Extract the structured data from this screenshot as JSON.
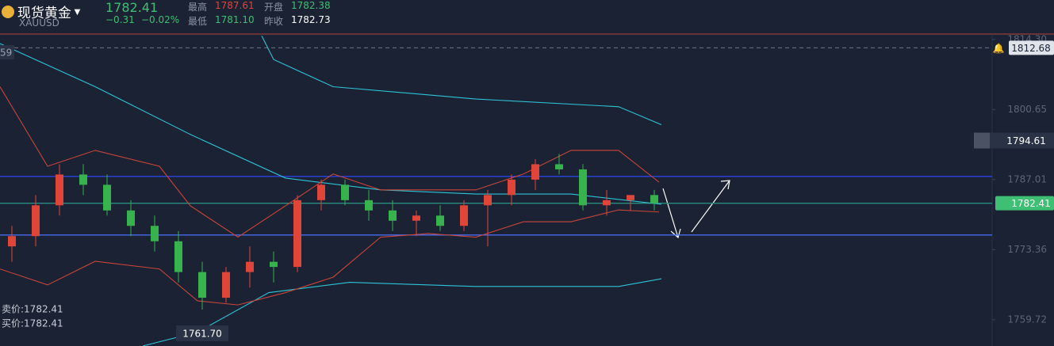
{
  "header": {
    "title": "现货黄金",
    "symbol": "XAUUSD",
    "price": "1782.41",
    "change": "−0.31",
    "change_pct": "−0.02%",
    "stats": [
      {
        "label": "最高",
        "value": "1787.61",
        "color": "#e0453a"
      },
      {
        "label": "开盘",
        "value": "1782.38",
        "color": "#3fbf73"
      },
      {
        "label": "最低",
        "value": "1781.10",
        "color": "#3fbf73"
      },
      {
        "label": "昨收",
        "value": "1782.73",
        "color": "#ffffff"
      }
    ]
  },
  "chart_data": {
    "type": "candlestick",
    "xlim": [
      0.5,
      28.5
    ],
    "ylim": [
      1754.6,
      1815.2
    ],
    "yticks": [
      {
        "value": 1814.3,
        "label": "1814.30"
      },
      1800.65,
      1787.01,
      1773.36,
      1759.72
    ],
    "up_color": "#e0453a",
    "down_color": "#37b24d",
    "open": [
      1774,
      1776,
      1782,
      1788,
      1786,
      1781,
      1778,
      1775,
      1769,
      1764,
      1769,
      1771,
      1770,
      1783,
      1786,
      1783,
      1781,
      1779,
      1780,
      1778,
      1782,
      1784,
      1787,
      1790,
      1789,
      1782,
      1783,
      1784
    ],
    "high": [
      1778,
      1784,
      1790,
      1790,
      1788,
      1783,
      1780,
      1777,
      1771,
      1770,
      1774,
      1773,
      1784,
      1787,
      1787,
      1785,
      1783,
      1781,
      1782,
      1783,
      1785,
      1788,
      1791,
      1792,
      1790,
      1785,
      1784,
      1785
    ],
    "low": [
      1771,
      1774,
      1780,
      1784,
      1780,
      1776,
      1773,
      1767,
      1761.7,
      1763,
      1766,
      1767,
      1769,
      1781,
      1782,
      1779,
      1777,
      1776,
      1777,
      1777,
      1774,
      1782,
      1785,
      1788,
      1781,
      1780,
      1781,
      1781
    ],
    "close": [
      1776,
      1782,
      1788,
      1786,
      1781,
      1778,
      1775,
      1769,
      1764,
      1769,
      1771,
      1770,
      1783,
      1786,
      1783,
      1781,
      1779,
      1780,
      1778,
      1782,
      1784,
      1787,
      1790,
      1789,
      1782,
      1783,
      1784,
      1782.41
    ],
    "series": [
      {
        "color": "#2ec4d6",
        "x": [
          0.5,
          4.5,
          8.5,
          12.5,
          16.5,
          20.5,
          24.5,
          28.3
        ],
        "values": [
          1813.5,
          1805.1,
          1795.8,
          1787.3,
          1785,
          1784.2,
          1784.2,
          1782.2
        ]
      },
      {
        "color": "#2ec4d6",
        "x": [
          11.5,
          12,
          14.5,
          20.5,
          26.5,
          28.3
        ],
        "values": [
          1815,
          1810.4,
          1805.1,
          1802.7,
          1801.2,
          1797.7
        ]
      },
      {
        "color": "#2ec4d6",
        "x": [
          6.5,
          8.8,
          11.8,
          15.2,
          20.5,
          26.5,
          28.3
        ],
        "values": [
          1754.6,
          1757.3,
          1765,
          1767,
          1766.2,
          1766.2,
          1767.7
        ]
      },
      {
        "color": "#c9453b",
        "x": [
          0.5,
          2.5,
          4.5,
          7.2,
          8.5,
          10.5,
          12.5,
          14.5,
          16.5,
          18.5,
          20.5,
          22.5,
          24.5,
          26.5,
          28.2
        ],
        "values": [
          1805.1,
          1789.6,
          1792.7,
          1789.6,
          1781.9,
          1775.8,
          1781.9,
          1788.1,
          1785,
          1785,
          1785,
          1788.1,
          1792.7,
          1792.7,
          1786.5
        ]
      },
      {
        "color": "#c9453b",
        "x": [
          0.5,
          2.5,
          4.5,
          7.2,
          8.8,
          10.5,
          12.5,
          14.5,
          16.5,
          18.5,
          20.5,
          22.5,
          24.5,
          26.5,
          28.2
        ],
        "values": [
          1769.6,
          1766.5,
          1771.1,
          1769.6,
          1763.4,
          1762.6,
          1765,
          1768,
          1775.8,
          1776.5,
          1775.8,
          1778.8,
          1778.8,
          1781.1,
          1780.7
        ]
      }
    ],
    "levels": [
      {
        "value": 1812.68,
        "color": "#6f7685",
        "dash": true,
        "tag": true
      },
      {
        "value": 1787.63,
        "color": "#2b45e0",
        "dash": false,
        "tag": false
      },
      {
        "value": 1776.22,
        "color": "#4a6cf0",
        "dash": false,
        "tag": false
      },
      {
        "value": 1782.41,
        "color": "#2a8c80",
        "dash": false,
        "tag": true
      }
    ],
    "alerts": [
      1794.61
    ],
    "low_marker": {
      "value": 1761.7,
      "label": "1761.70"
    },
    "bid_ask": [
      "卖价:1782.41",
      "买价:1782.41"
    ],
    "cut_label": "59"
  }
}
